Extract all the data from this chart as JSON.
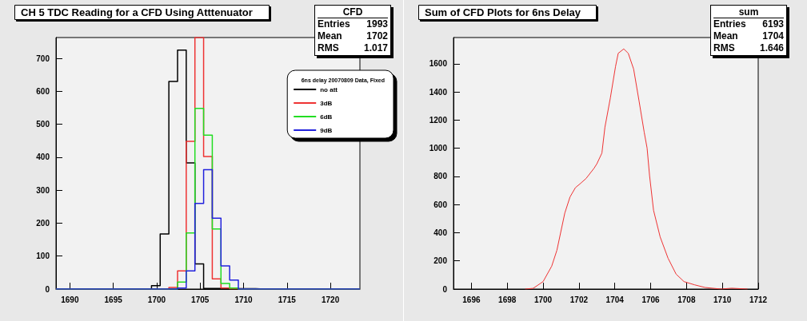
{
  "chart_data": [
    {
      "type": "histogram",
      "title": "CH 5 TDC Reading for a CFD Using Atttenuator",
      "legend_title": "6ns delay 20070809 Data, Fixed",
      "legend": "top right",
      "annotations": [
        "CFD",
        "Entries",
        "1993",
        "Mean",
        "1702",
        "RMS",
        "1.017"
      ],
      "bins": [
        1688.4,
        1689.4,
        1690.4,
        1691.4,
        1692.4,
        1693.4,
        1694.4,
        1695.4,
        1696.4,
        1697.4,
        1698.4,
        1699.4,
        1700.4,
        1701.4,
        1702.4,
        1703.4,
        1704.4,
        1705.4,
        1706.4,
        1707.4,
        1708.4,
        1709.4,
        1710.4,
        1711.4,
        1712.4,
        1713.4,
        1714.4,
        1715.4,
        1716.4,
        1717.4,
        1718.4,
        1719.4,
        1720.4,
        1721.4,
        1722.4,
        1723.4
      ],
      "xlim": [
        1688.4,
        1723.4
      ],
      "xticks": [
        1690,
        1695,
        1700,
        1705,
        1710,
        1715,
        1720
      ],
      "ylim": [
        0,
        763
      ],
      "yticks": [
        0,
        100,
        200,
        300,
        400,
        500,
        600,
        700
      ],
      "series": [
        {
          "name": "no att",
          "color": "#000000",
          "values": [
            0,
            0,
            0,
            0,
            0,
            0,
            0,
            0,
            0,
            0,
            0,
            10,
            167,
            630,
            725,
            383,
            76,
            2,
            2,
            1,
            1,
            1,
            1,
            0,
            0,
            0,
            0,
            0,
            0,
            0,
            0,
            0,
            0,
            0,
            0
          ]
        },
        {
          "name": "3dB",
          "color": "#ee3333",
          "values": [
            0,
            0,
            0,
            0,
            0,
            0,
            0,
            0,
            0,
            0,
            0,
            0,
            0,
            5,
            55,
            448,
            763,
            402,
            31,
            3,
            1,
            0,
            0,
            0,
            0,
            0,
            0,
            0,
            0,
            0,
            0,
            0,
            0,
            0,
            0
          ]
        },
        {
          "name": "6dB",
          "color": "#22dd22",
          "values": [
            0,
            0,
            0,
            0,
            0,
            0,
            0,
            0,
            0,
            0,
            0,
            0,
            0,
            0,
            21,
            170,
            548,
            467,
            182,
            17,
            3,
            0,
            0,
            0,
            0,
            0,
            0,
            0,
            0,
            0,
            0,
            0,
            0,
            0,
            0
          ]
        },
        {
          "name": "9dB",
          "color": "#2222dd",
          "values": [
            0,
            0,
            0,
            0,
            0,
            0,
            0,
            0,
            0,
            0,
            0,
            0,
            0,
            0,
            3,
            55,
            260,
            362,
            215,
            70,
            27,
            0,
            0,
            0,
            0,
            0,
            0,
            0,
            0,
            0,
            0,
            0,
            0,
            0,
            0
          ]
        }
      ]
    },
    {
      "type": "line",
      "title": "Sum of CFD Plots for 6ns Delay",
      "marker": "none",
      "annotations": [
        "sum",
        "Entries",
        "6193",
        "Mean",
        "1704",
        "RMS",
        "1.646"
      ],
      "xlim": [
        1695,
        1712
      ],
      "xticks": [
        1696,
        1698,
        1700,
        1702,
        1704,
        1706,
        1708,
        1710,
        1712
      ],
      "ylim": [
        0,
        1787
      ],
      "yticks": [
        0,
        200,
        400,
        600,
        800,
        1000,
        1200,
        1400,
        1600
      ],
      "series": [
        {
          "color": "#ee3333",
          "x": [
            1699.0,
            1699.44,
            1700.0,
            1700.48,
            1700.77,
            1701.21,
            1701.5,
            1701.8,
            1702.1,
            1702.4,
            1702.84,
            1703.0,
            1703.28,
            1703.45,
            1703.75,
            1704.04,
            1704.19,
            1704.5,
            1704.75,
            1705.05,
            1705.35,
            1705.64,
            1705.8,
            1705.94,
            1706.16,
            1706.53,
            1706.97,
            1707.42,
            1707.86,
            1708.45,
            1709.04,
            1709.93,
            1710.52,
            1711.4
          ],
          "values": [
            0,
            5,
            53,
            163,
            276,
            540,
            654,
            720,
            752,
            786,
            858,
            890,
            966,
            1151,
            1357,
            1581,
            1675,
            1706,
            1675,
            1563,
            1338,
            1114,
            1002,
            805,
            560,
            370,
            219,
            106,
            53,
            30,
            11,
            0,
            6,
            0
          ]
        }
      ]
    }
  ]
}
